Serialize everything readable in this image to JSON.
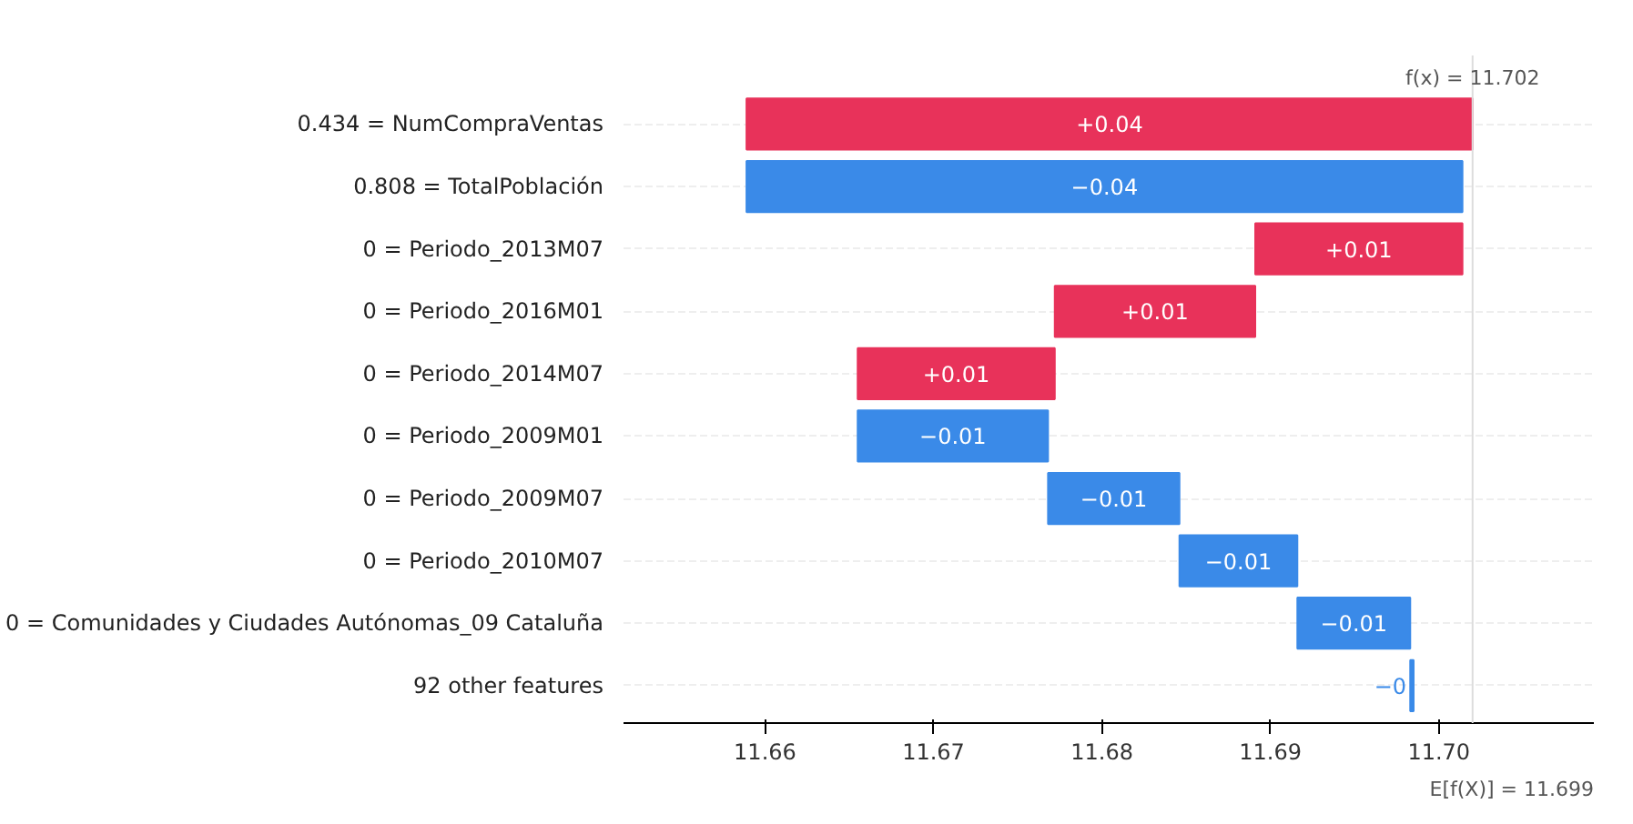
{
  "chart_data": {
    "type": "bar",
    "orientation": "horizontal",
    "categories": [
      "0.434 = NumCompraVentas",
      "0.808 = TotalPoblación",
      "0 = Periodo_2013M07",
      "0 = Periodo_2016M01",
      "0 = Periodo_2014M07",
      "0 = Periodo_2009M01",
      "0 = Periodo_2009M07",
      "0 = Periodo_2010M07",
      "0 = Comunidades y Ciudades Autónomas_09 Cataluña",
      "92 other features"
    ],
    "base": [
      11.6589,
      11.7014,
      11.6891,
      11.6772,
      11.6655,
      11.6768,
      11.6846,
      11.6916,
      11.6983,
      11.6985
    ],
    "values": [
      0.0431,
      -0.0425,
      0.0123,
      0.0119,
      0.0117,
      -0.0113,
      -0.0078,
      -0.007,
      -0.0067,
      -0.0002
    ],
    "value_labels": [
      "+0.04",
      "−0.04",
      "+0.01",
      "+0.01",
      "+0.01",
      "−0.01",
      "−0.01",
      "−0.01",
      "−0.01",
      "−0"
    ],
    "colors": [
      "#e8325a",
      "#3a8ae8",
      "#e8325a",
      "#e8325a",
      "#e8325a",
      "#3a8ae8",
      "#3a8ae8",
      "#3a8ae8",
      "#3a8ae8",
      "#3a8ae8"
    ],
    "xlim": [
      11.6516,
      11.7092
    ],
    "xticks": [
      11.66,
      11.67,
      11.68,
      11.69,
      {
        "value": 11.7,
        "label": "11.70"
      }
    ],
    "grid": "y",
    "ref_lines": [
      {
        "axis": "x",
        "value": 11.702,
        "label": "f(x) = 11.702",
        "color": "#dddddd"
      }
    ],
    "annotations": [
      "E[f(X)] = 11.699"
    ]
  }
}
